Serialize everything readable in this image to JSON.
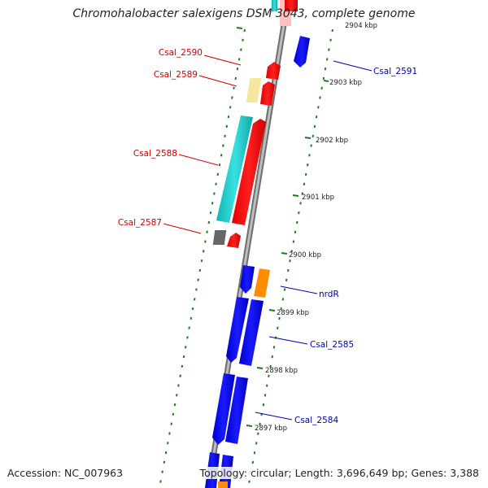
{
  "title": "Chromohalobacter salexigens DSM 3043, complete genome",
  "footer": {
    "accession_label": "Accession: ",
    "accession_value": "NC_007963",
    "summary": "Topology: circular; Length: 3,696,649 bp; Genes: 3,388"
  },
  "colors": {
    "backbone": "#8a8a8a",
    "tick": "#1f7a1f",
    "forward_label": "#cc0000",
    "reverse_label": "#0000aa",
    "red_feature": "#ff0000",
    "cyan_feature": "#1fcfcf",
    "yellow_feature": "#f4e7a0",
    "blue_feature": "#0000ee",
    "orange_feature": "#ff8c00",
    "gray_feature": "#666666",
    "pink_feature": "#ffc0c0"
  },
  "position_labels": [
    "2904 kbp",
    "2903 kbp",
    "2902 kbp",
    "2901 kbp",
    "2900 kbp",
    "2899 kbp",
    "2898 kbp",
    "2897 kbp"
  ],
  "gene_labels": {
    "forward": [
      "Csal_2590",
      "Csal_2589",
      "Csal_2588",
      "Csal_2587"
    ],
    "reverse": [
      "Csal_2591",
      "nrdR",
      "Csal_2585",
      "Csal_2584"
    ]
  }
}
